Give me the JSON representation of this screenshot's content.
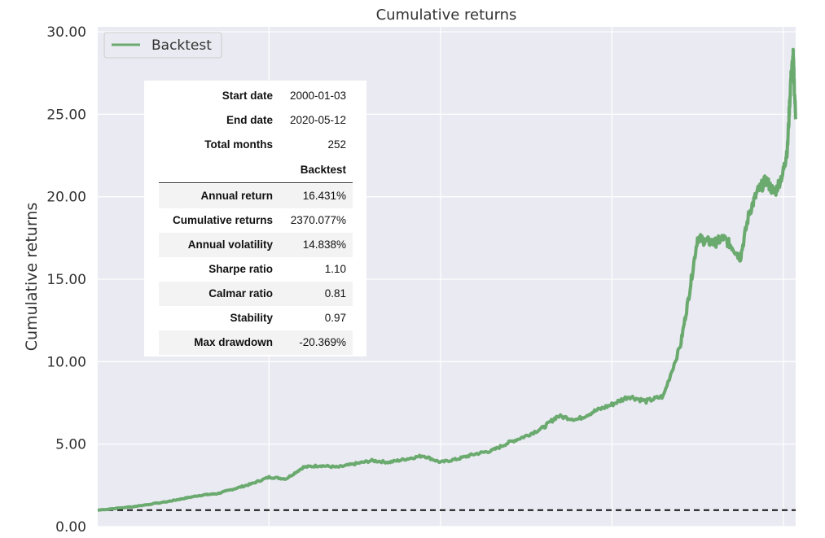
{
  "chart_data": {
    "type": "line",
    "title": "Cumulative returns",
    "xlabel": "",
    "ylabel": "Cumulative returns",
    "ylim": [
      0,
      30.3
    ],
    "xlim": [
      "2000-01-03",
      "2020-05-12"
    ],
    "yticks": [
      "0.00",
      "5.00",
      "10.00",
      "15.00",
      "20.00",
      "25.00",
      "30.00"
    ],
    "grid": true,
    "legend": "top-left",
    "reference_line": 1.0,
    "series": [
      {
        "name": "Backtest",
        "color": "#6aaa6e",
        "x": [
          "2000-01-03",
          "2001-01-01",
          "2002-01-01",
          "2002-07-01",
          "2003-01-01",
          "2003-07-01",
          "2004-01-01",
          "2004-07-01",
          "2005-01-01",
          "2005-07-01",
          "2006-01-01",
          "2006-07-01",
          "2007-01-01",
          "2007-07-01",
          "2008-01-01",
          "2008-07-01",
          "2009-01-01",
          "2009-07-01",
          "2010-01-01",
          "2010-07-01",
          "2011-01-01",
          "2011-07-01",
          "2012-01-01",
          "2012-07-01",
          "2013-01-01",
          "2013-06-01",
          "2014-01-01",
          "2014-07-01",
          "2015-01-01",
          "2015-07-01",
          "2016-01-01",
          "2016-07-01",
          "2017-01-01",
          "2017-04-01",
          "2017-07-01",
          "2017-10-01",
          "2018-01-01",
          "2018-04-01",
          "2018-07-01",
          "2018-10-01",
          "2019-01-01",
          "2019-04-01",
          "2019-07-01",
          "2019-10-01",
          "2020-01-01",
          "2020-02-15",
          "2020-03-20",
          "2020-04-15",
          "2020-05-12"
        ],
        "values": [
          1.0,
          1.2,
          1.5,
          1.7,
          1.9,
          2.0,
          2.3,
          2.6,
          3.0,
          2.9,
          3.6,
          3.7,
          3.6,
          3.8,
          4.0,
          3.9,
          4.1,
          4.3,
          3.9,
          4.1,
          4.4,
          4.6,
          5.1,
          5.5,
          6.0,
          6.7,
          6.5,
          7.0,
          7.4,
          7.9,
          7.6,
          7.9,
          11.0,
          14.0,
          17.5,
          17.3,
          17.2,
          17.5,
          17.0,
          16.3,
          19.0,
          20.3,
          21.0,
          20.2,
          21.5,
          23.0,
          27.0,
          28.5,
          24.7
        ]
      }
    ]
  },
  "stats": {
    "rows_top": [
      {
        "label": "Start date",
        "value": "2000-01-03"
      },
      {
        "label": "End date",
        "value": "2020-05-12"
      },
      {
        "label": "Total months",
        "value": "252"
      }
    ],
    "column_header": "Backtest",
    "rows": [
      {
        "label": "Annual return",
        "value": "16.431%"
      },
      {
        "label": "Cumulative returns",
        "value": "2370.077%"
      },
      {
        "label": "Annual volatility",
        "value": "14.838%"
      },
      {
        "label": "Sharpe ratio",
        "value": "1.10"
      },
      {
        "label": "Calmar ratio",
        "value": "0.81"
      },
      {
        "label": "Stability",
        "value": "0.97"
      },
      {
        "label": "Max drawdown",
        "value": "-20.369%"
      }
    ]
  }
}
